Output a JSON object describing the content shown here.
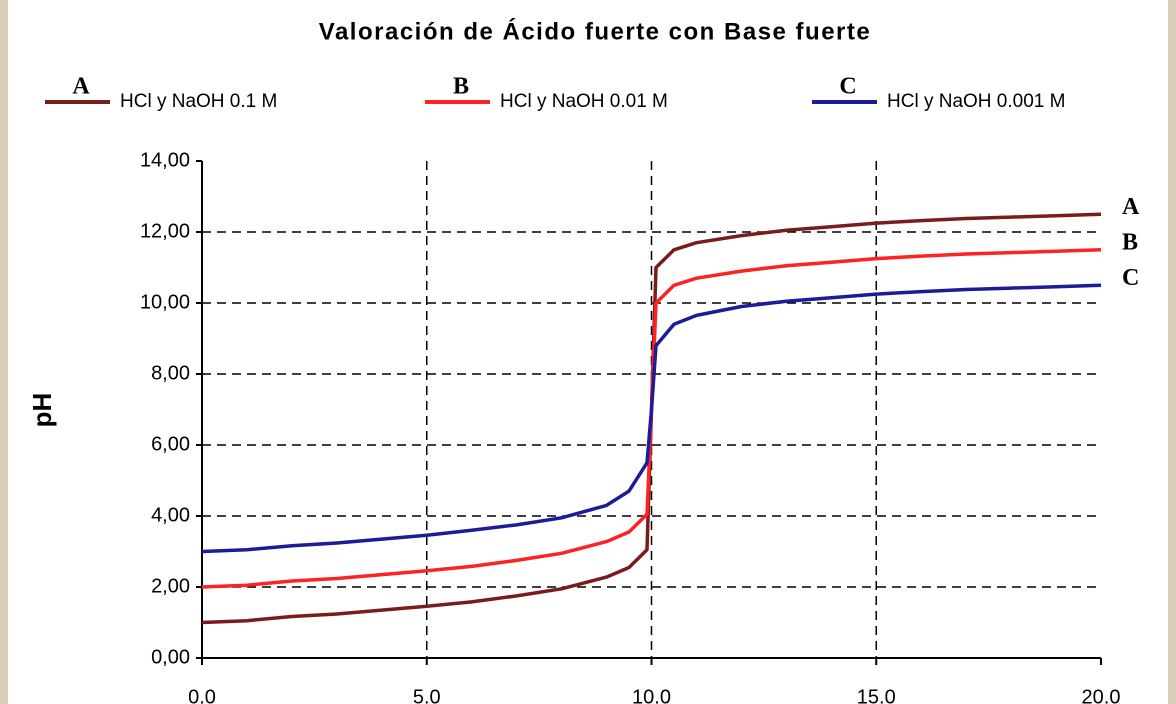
{
  "chart_data": {
    "type": "line",
    "title": "Valoración de Ácido fuerte con Base fuerte",
    "y_label": "pH",
    "x": [
      0,
      1,
      2,
      3,
      4,
      5,
      6,
      7,
      8,
      9,
      9.5,
      9.9,
      10,
      10.1,
      10.5,
      11,
      12,
      13,
      14,
      15,
      16,
      17,
      18,
      19,
      20
    ],
    "series": [
      {
        "name": "HCl y NaOH 0.1 M",
        "letter": "A",
        "color": "#7a1c1c",
        "values": [
          1.0,
          1.05,
          1.17,
          1.24,
          1.35,
          1.46,
          1.58,
          1.75,
          1.95,
          2.28,
          2.55,
          3.05,
          7.0,
          11.0,
          11.5,
          11.7,
          11.9,
          12.05,
          12.15,
          12.25,
          12.32,
          12.38,
          12.42,
          12.46,
          12.5
        ]
      },
      {
        "name": "HCl y NaOH 0.01 M",
        "letter": "B",
        "color": "#ff2222",
        "values": [
          2.0,
          2.05,
          2.17,
          2.24,
          2.35,
          2.46,
          2.58,
          2.75,
          2.95,
          3.28,
          3.55,
          4.05,
          7.0,
          10.0,
          10.5,
          10.7,
          10.9,
          11.05,
          11.15,
          11.25,
          11.32,
          11.38,
          11.42,
          11.46,
          11.5
        ]
      },
      {
        "name": "HCl y NaOH 0.001 M",
        "letter": "C",
        "color": "#1c1c99",
        "values": [
          3.0,
          3.05,
          3.16,
          3.24,
          3.35,
          3.46,
          3.6,
          3.75,
          3.95,
          4.3,
          4.7,
          5.5,
          7.0,
          8.8,
          9.4,
          9.65,
          9.9,
          10.05,
          10.15,
          10.25,
          10.32,
          10.38,
          10.42,
          10.46,
          10.5
        ]
      }
    ],
    "xlim": [
      0,
      20
    ],
    "xticks": [
      {
        "value": 0,
        "label": "0.0"
      },
      {
        "value": 5,
        "label": "5.0"
      },
      {
        "value": 10,
        "label": "10.0"
      },
      {
        "value": 15,
        "label": "15.0"
      },
      {
        "value": 20,
        "label": "20.0"
      }
    ],
    "ylim": [
      0,
      14
    ],
    "yticks": [
      {
        "value": 0,
        "label": "0,00"
      },
      {
        "value": 2,
        "label": "2,00"
      },
      {
        "value": 4,
        "label": "4,00"
      },
      {
        "value": 6,
        "label": "6,00"
      },
      {
        "value": 8,
        "label": "8,00"
      },
      {
        "value": 10,
        "label": "10,00"
      },
      {
        "value": 12,
        "label": "12,00"
      },
      {
        "value": 14,
        "label": "14,00"
      }
    ],
    "grid": true,
    "legend": "top"
  }
}
